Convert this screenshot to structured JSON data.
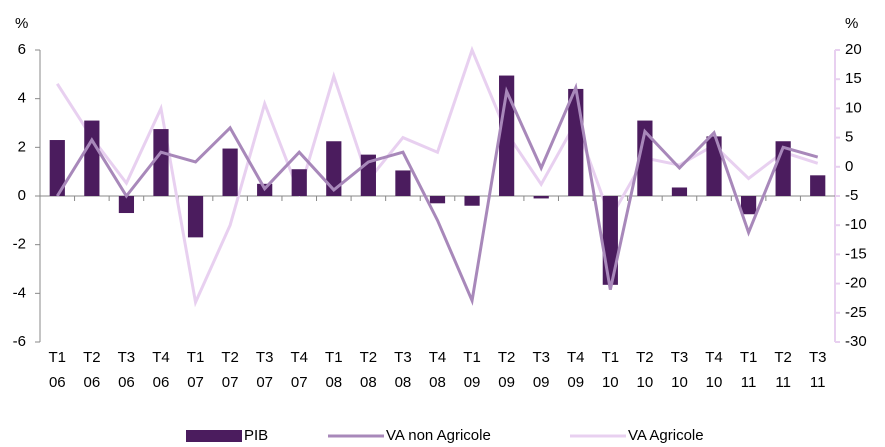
{
  "chart_data": {
    "type": "bar_line",
    "y_label": "%",
    "y2_label": "%",
    "categories": [
      [
        "T1",
        "06"
      ],
      [
        "T2",
        "06"
      ],
      [
        "T3",
        "06"
      ],
      [
        "T4",
        "06"
      ],
      [
        "T1",
        "07"
      ],
      [
        "T2",
        "07"
      ],
      [
        "T3",
        "07"
      ],
      [
        "T4",
        "07"
      ],
      [
        "T1",
        "08"
      ],
      [
        "T2",
        "08"
      ],
      [
        "T3",
        "08"
      ],
      [
        "T4",
        "08"
      ],
      [
        "T1",
        "09"
      ],
      [
        "T2",
        "09"
      ],
      [
        "T3",
        "09"
      ],
      [
        "T4",
        "09"
      ],
      [
        "T1",
        "10"
      ],
      [
        "T2",
        "10"
      ],
      [
        "T3",
        "10"
      ],
      [
        "T4",
        "10"
      ],
      [
        "T1",
        "11"
      ],
      [
        "T2",
        "11"
      ],
      [
        "T3",
        "11"
      ]
    ],
    "series": [
      {
        "name": "PIB",
        "type": "bar",
        "color": "#4b1c5e",
        "values": [
          2.3,
          3.1,
          -0.7,
          2.75,
          -1.7,
          1.95,
          0.5,
          1.1,
          2.25,
          1.7,
          1.05,
          -0.3,
          -0.4,
          4.95,
          -0.1,
          4.4,
          -3.65,
          3.1,
          0.35,
          2.45,
          -0.75,
          2.25,
          0.85
        ]
      },
      {
        "name": "VA non Agricole",
        "type": "line",
        "color": "#a888ba",
        "values": [
          0.0,
          2.3,
          0.0,
          1.8,
          1.4,
          2.8,
          0.3,
          1.8,
          0.25,
          1.4,
          1.8,
          -1.0,
          -4.3,
          4.3,
          1.15,
          4.45,
          -3.85,
          2.65,
          1.15,
          2.6,
          -1.5,
          2.0,
          1.6
        ]
      },
      {
        "name": "VA Agricole",
        "type": "line",
        "axis": "y2",
        "color": "#e8d0f0",
        "values": [
          14.2,
          5,
          -2.8,
          10,
          -23.2,
          -10,
          10.8,
          -4.5,
          15.5,
          -2.3,
          5,
          2.5,
          20,
          5.8,
          -3,
          7.6,
          -8.8,
          1.5,
          0.3,
          3.7,
          -2,
          2.5,
          0.6
        ]
      }
    ],
    "ylim": [
      -6,
      6
    ],
    "yticks": [
      -6,
      -4,
      -2,
      0,
      2,
      4,
      6
    ],
    "y2lim": [
      -30,
      20
    ],
    "y2ticks": [
      -30,
      -25,
      -20,
      -15,
      -10,
      -5,
      0,
      5,
      10,
      15,
      20
    ],
    "y2_color": "#e8d0f0",
    "grid": false
  }
}
